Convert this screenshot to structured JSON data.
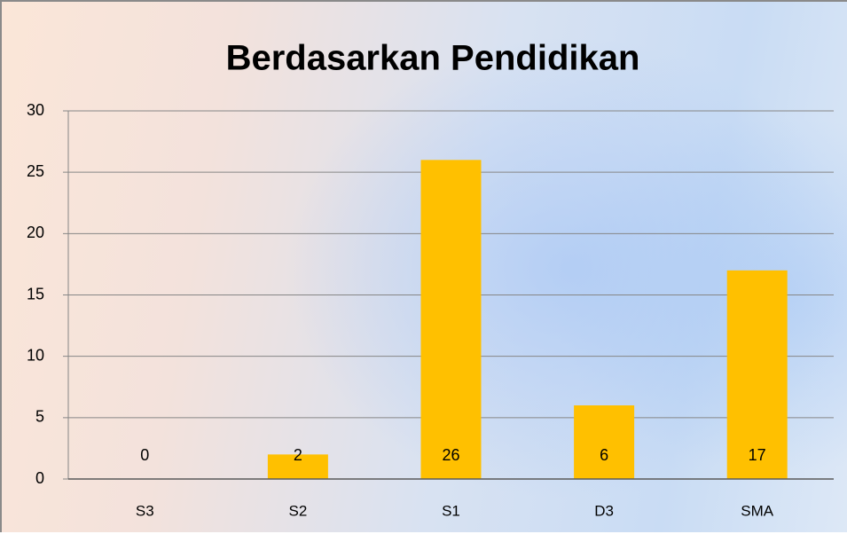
{
  "chart_data": {
    "type": "bar",
    "title": "Berdasarkan Pendidikan",
    "categories": [
      "S3",
      "S2",
      "S1",
      "D3",
      "SMA"
    ],
    "values": [
      0,
      2,
      26,
      6,
      17
    ],
    "color": "#ffc000",
    "ylim": [
      0,
      30
    ],
    "yticks": [
      0,
      5,
      10,
      15,
      20,
      25,
      30
    ],
    "grid": true
  }
}
